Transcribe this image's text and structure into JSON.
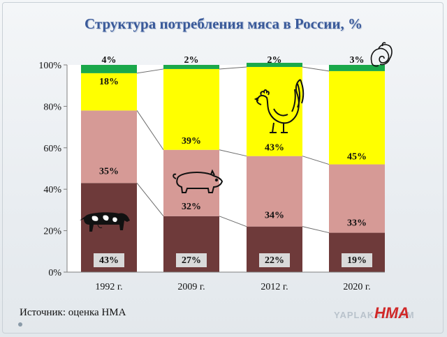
{
  "chart_data": {
    "type": "bar",
    "stacked": true,
    "title": "Структура потребления мяса в России, %",
    "categories": [
      "1992 г.",
      "2009 г.",
      "2012 г.",
      "2020 г."
    ],
    "series": [
      {
        "key": "beef",
        "values": [
          43,
          27,
          22,
          19
        ],
        "labels": [
          "43%",
          "27%",
          "22%",
          "19%"
        ],
        "color": "#6e3a3a"
      },
      {
        "key": "pork",
        "values": [
          35,
          32,
          34,
          33
        ],
        "labels": [
          "35%",
          "32%",
          "34%",
          "33%"
        ],
        "color": "#d69a96"
      },
      {
        "key": "poultry",
        "values": [
          18,
          39,
          43,
          45
        ],
        "labels": [
          "18%",
          "39%",
          "43%",
          "45%"
        ],
        "color": "#ffff00"
      },
      {
        "key": "lamb",
        "values": [
          4,
          2,
          2,
          3
        ],
        "labels": [
          "4%",
          "2%",
          "2%",
          "3%"
        ],
        "color": "#1aa84a"
      }
    ],
    "ylim": [
      0,
      100
    ],
    "yticks": [
      "0%",
      "20%",
      "40%",
      "60%",
      "80%",
      "100%"
    ],
    "grid": false,
    "legend": "none",
    "icons": [
      "cow-icon",
      "pig-icon",
      "rooster-icon",
      "ram-icon"
    ]
  },
  "source": "Источник: оценка НМА",
  "watermark": "YAPLAKAL.COM",
  "logo": "НМА"
}
